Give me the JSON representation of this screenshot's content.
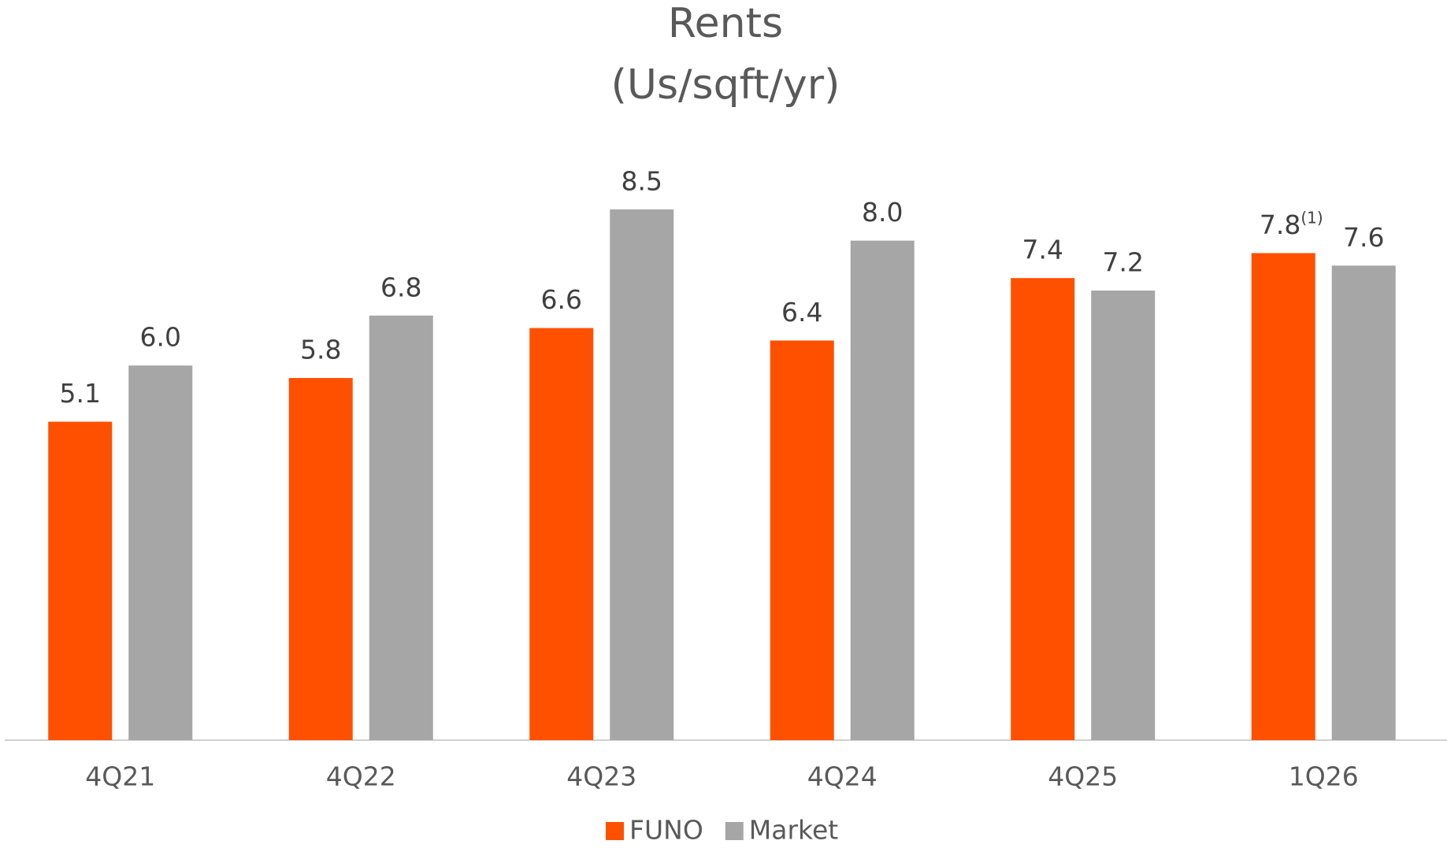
{
  "chart_data": {
    "type": "bar",
    "title": "Rents",
    "subtitle": "(Us/sqft/yr)",
    "categories": [
      "4Q21",
      "4Q22",
      "4Q23",
      "4Q24",
      "4Q25",
      "1Q26"
    ],
    "series": [
      {
        "name": "FUNO",
        "color": "#ff5000",
        "values": [
          5.1,
          5.8,
          6.6,
          6.4,
          7.4,
          7.8
        ],
        "value_labels": [
          "5.1",
          "5.8",
          "6.6",
          "6.4",
          "7.4",
          "7.8"
        ]
      },
      {
        "name": "Market",
        "color": "#a6a6a6",
        "values": [
          6.0,
          6.8,
          8.5,
          8.0,
          7.2,
          7.6
        ],
        "value_labels": [
          "6.0",
          "6.8",
          "8.5",
          "8.0",
          "7.2",
          "7.6"
        ]
      }
    ],
    "annotation": "(1)",
    "ylim": [
      0,
      10
    ],
    "grid": false,
    "legend": "bottom"
  }
}
